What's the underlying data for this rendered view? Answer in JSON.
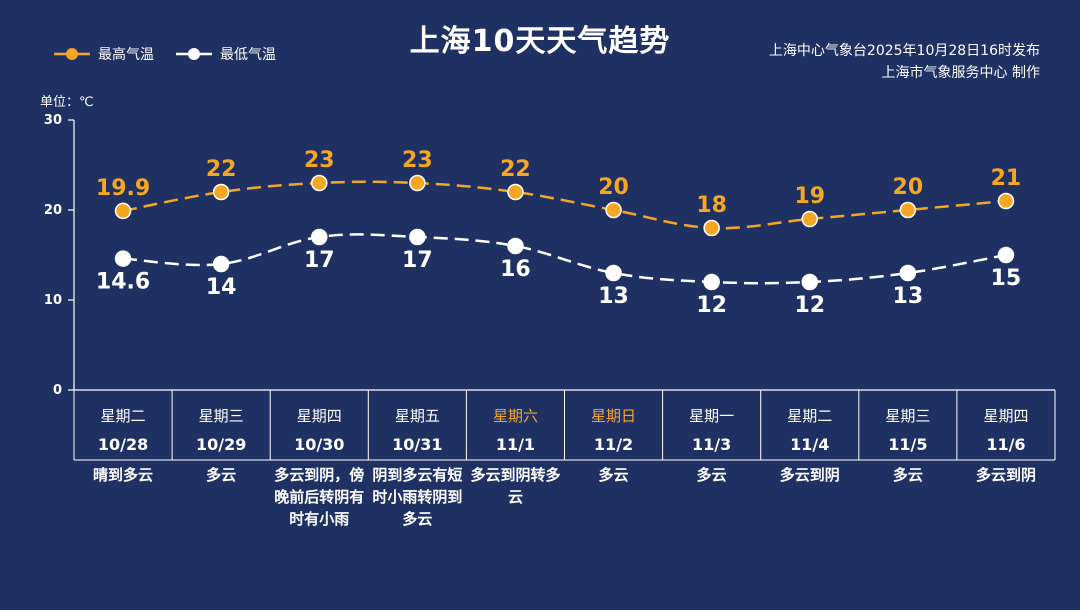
{
  "header": {
    "title": "上海10天天气趋势",
    "source_line1": "上海中心气象台2025年10月28日16时发布",
    "source_line2": "上海市气象服务中心  制作",
    "unit_label": "单位：℃"
  },
  "legend": {
    "high_label": "最高气温",
    "low_label": "最低气温"
  },
  "colors": {
    "background": "#1f3163",
    "high": "#f5a623",
    "low": "#ffffff",
    "weekend": "#f5a623"
  },
  "chart_data": {
    "type": "line",
    "categories": [
      "10/28",
      "10/29",
      "10/30",
      "10/31",
      "11/1",
      "11/2",
      "11/3",
      "11/4",
      "11/5",
      "11/6"
    ],
    "weekdays": [
      "星期二",
      "星期三",
      "星期四",
      "星期五",
      "星期六",
      "星期日",
      "星期一",
      "星期二",
      "星期三",
      "星期四"
    ],
    "weekend_flags": [
      false,
      false,
      false,
      false,
      true,
      true,
      false,
      false,
      false,
      false
    ],
    "conditions": [
      "晴到多云",
      "多云",
      "多云到阴，傍晚前后转阴有时有小雨",
      "阴到多云有短时小雨转阴到多云",
      "多云到阴转多云",
      "多云",
      "多云",
      "多云到阴",
      "多云",
      "多云到阴"
    ],
    "series": [
      {
        "name": "最高气温",
        "values": [
          19.9,
          22,
          23,
          23,
          22,
          20,
          18,
          19,
          20,
          21
        ]
      },
      {
        "name": "最低气温",
        "values": [
          14.6,
          14,
          17,
          17,
          16,
          13,
          12,
          12,
          13,
          15
        ]
      }
    ],
    "value_labels_high": [
      "19.9",
      "22",
      "23",
      "23",
      "22",
      "20",
      "18",
      "19",
      "20",
      "21"
    ],
    "value_labels_low": [
      "14.6",
      "14",
      "17",
      "17",
      "16",
      "13",
      "12",
      "12",
      "13",
      "15"
    ],
    "yticks": [
      "0",
      "10",
      "20",
      "30"
    ],
    "ylim": [
      0,
      30
    ],
    "grid": false,
    "legend_position": "top-left"
  }
}
